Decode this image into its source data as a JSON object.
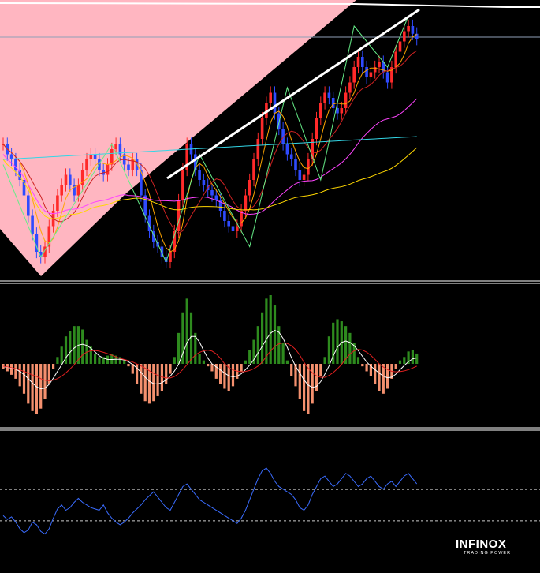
{
  "brand": {
    "name": "INFINOX",
    "tagline": "TRADING POWER"
  },
  "colors": {
    "background": "#000000",
    "pink_zone": "#ffb6c1",
    "bull": "#ff2a2a",
    "bear": "#2f4bff",
    "hist_pos": "#2e8b1e",
    "hist_neg": "#f4906e",
    "ma_fast": "#ffa500",
    "ma_mid": "#cc2222",
    "ma_slow": "#ff44ff",
    "ma_long": "#ffd700",
    "ma_cyan": "#33d6e6",
    "zigzag": "#66ee88",
    "rsi": "#3a6cff",
    "separator": "#ffffff"
  },
  "chart_data": [
    {
      "type": "candlestick",
      "panel": "price",
      "n_bars": 100,
      "overlays": [
        "MA fast",
        "MA mid",
        "MA slow",
        "MA long",
        "MA cyan",
        "ZigZag",
        "trendline",
        "horizontal level"
      ],
      "ohlc_close_path": [
        0.5,
        0.46,
        0.44,
        0.4,
        0.36,
        0.3,
        0.22,
        0.15,
        0.08,
        0.06,
        0.1,
        0.18,
        0.24,
        0.3,
        0.34,
        0.38,
        0.34,
        0.3,
        0.34,
        0.4,
        0.44,
        0.46,
        0.44,
        0.4,
        0.38,
        0.42,
        0.48,
        0.5,
        0.46,
        0.42,
        0.4,
        0.44,
        0.4,
        0.3,
        0.22,
        0.16,
        0.12,
        0.1,
        0.06,
        0.04,
        0.08,
        0.16,
        0.28,
        0.4,
        0.5,
        0.46,
        0.4,
        0.36,
        0.34,
        0.32,
        0.3,
        0.28,
        0.24,
        0.2,
        0.18,
        0.16,
        0.18,
        0.24,
        0.3,
        0.36,
        0.44,
        0.52,
        0.6,
        0.66,
        0.7,
        0.62,
        0.56,
        0.5,
        0.46,
        0.44,
        0.4,
        0.36,
        0.38,
        0.44,
        0.52,
        0.6,
        0.66,
        0.7,
        0.68,
        0.64,
        0.62,
        0.64,
        0.7,
        0.74,
        0.8,
        0.84,
        0.8,
        0.76,
        0.78,
        0.8,
        0.82,
        0.78,
        0.74,
        0.8,
        0.86,
        0.9,
        0.94,
        0.96,
        0.93,
        0.91
      ],
      "y_range": [
        0,
        1
      ]
    },
    {
      "type": "bar",
      "panel": "oscillator",
      "label": "MACD histogram with signal lines",
      "values": [
        -0.1,
        -0.15,
        -0.22,
        -0.3,
        -0.45,
        -0.6,
        -0.8,
        -0.95,
        -1.0,
        -0.9,
        -0.7,
        -0.4,
        -0.1,
        0.1,
        0.25,
        0.4,
        0.48,
        0.55,
        0.55,
        0.5,
        0.35,
        0.25,
        0.15,
        0.1,
        0.1,
        0.12,
        0.14,
        0.12,
        0.1,
        0.05,
        -0.05,
        -0.2,
        -0.4,
        -0.6,
        -0.75,
        -0.8,
        -0.75,
        -0.65,
        -0.55,
        -0.4,
        -0.2,
        0.1,
        0.45,
        0.75,
        0.95,
        0.75,
        0.45,
        0.15,
        0.05,
        -0.05,
        -0.15,
        -0.3,
        -0.4,
        -0.5,
        -0.55,
        -0.45,
        -0.3,
        -0.15,
        0.05,
        0.2,
        0.35,
        0.55,
        0.75,
        0.95,
        1.0,
        0.85,
        0.55,
        0.3,
        0.05,
        -0.25,
        -0.45,
        -0.7,
        -0.95,
        -1.0,
        -0.8,
        -0.55,
        -0.25,
        0.1,
        0.4,
        0.6,
        0.65,
        0.62,
        0.55,
        0.45,
        0.3,
        0.1,
        -0.05,
        -0.15,
        -0.25,
        -0.4,
        -0.55,
        -0.6,
        -0.5,
        -0.3,
        -0.1,
        0.05,
        0.1,
        0.18,
        0.2,
        0.15
      ],
      "y_range": [
        -1,
        1
      ]
    },
    {
      "type": "line",
      "panel": "rsi",
      "label": "RSI",
      "levels": [
        70,
        30
      ],
      "values": [
        40,
        37,
        39,
        35,
        30,
        27,
        29,
        35,
        33,
        28,
        26,
        30,
        38,
        45,
        48,
        44,
        46,
        50,
        53,
        50,
        48,
        46,
        45,
        44,
        48,
        42,
        38,
        35,
        33,
        35,
        38,
        42,
        45,
        48,
        52,
        55,
        58,
        54,
        50,
        46,
        44,
        50,
        56,
        62,
        64,
        60,
        56,
        52,
        50,
        48,
        46,
        44,
        42,
        40,
        38,
        36,
        34,
        38,
        44,
        52,
        60,
        68,
        74,
        76,
        72,
        66,
        62,
        60,
        58,
        56,
        52,
        46,
        44,
        48,
        56,
        62,
        68,
        70,
        66,
        62,
        64,
        68,
        72,
        70,
        66,
        62,
        64,
        68,
        70,
        66,
        62,
        60,
        64,
        66,
        62,
        66,
        70,
        72,
        68,
        64
      ],
      "y_range": [
        0,
        100
      ]
    }
  ]
}
